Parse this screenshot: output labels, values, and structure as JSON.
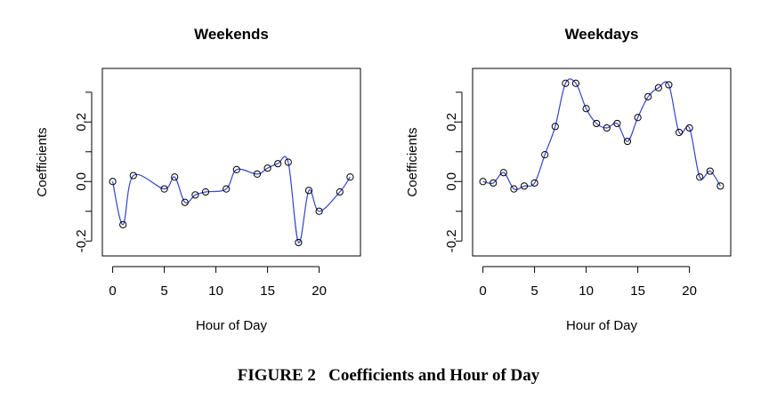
{
  "caption": "FIGURE 2   Coefficients and Hour of Day",
  "chart_data": [
    {
      "type": "line",
      "title": "Weekends",
      "xlabel": "Hour of Day",
      "ylabel": "Coefficients",
      "xlim": [
        -1,
        24
      ],
      "ylim": [
        -0.25,
        0.38
      ],
      "xticks": [
        0,
        5,
        10,
        15,
        20
      ],
      "yticks": [
        -0.2,
        0.0,
        0.2
      ],
      "ytick_labels": [
        "-0.2",
        "0.0",
        "0.2"
      ],
      "line_color": "#3344cc",
      "x": [
        0,
        1,
        2,
        3,
        4,
        5,
        6,
        7,
        8,
        9,
        10,
        11,
        12,
        13,
        14,
        15,
        16,
        17,
        18,
        19,
        20,
        21,
        22,
        23
      ],
      "y": [
        0.0,
        -0.145,
        0.02,
        null,
        null,
        -0.025,
        0.015,
        -0.07,
        -0.045,
        -0.035,
        null,
        -0.025,
        0.04,
        null,
        0.025,
        0.045,
        0.06,
        0.065,
        -0.205,
        -0.03,
        -0.1,
        null,
        -0.035,
        0.015
      ]
    },
    {
      "type": "line",
      "title": "Weekdays",
      "xlabel": "Hour of Day",
      "ylabel": "Coefficients",
      "xlim": [
        -1,
        24
      ],
      "ylim": [
        -0.25,
        0.38
      ],
      "xticks": [
        0,
        5,
        10,
        15,
        20
      ],
      "yticks": [
        -0.2,
        0.0,
        0.2
      ],
      "ytick_labels": [
        "-0.2",
        "0.0",
        "0.2"
      ],
      "line_color": "#3344cc",
      "x": [
        0,
        1,
        2,
        3,
        4,
        5,
        6,
        7,
        8,
        9,
        10,
        11,
        12,
        13,
        14,
        15,
        16,
        17,
        18,
        19,
        20,
        21,
        22,
        23
      ],
      "y": [
        0.0,
        -0.005,
        0.03,
        -0.025,
        -0.015,
        -0.005,
        0.09,
        0.185,
        0.33,
        0.33,
        0.245,
        0.195,
        0.18,
        0.195,
        0.135,
        0.215,
        0.285,
        0.315,
        0.325,
        0.165,
        0.18,
        0.015,
        0.035,
        -0.015
      ]
    }
  ]
}
